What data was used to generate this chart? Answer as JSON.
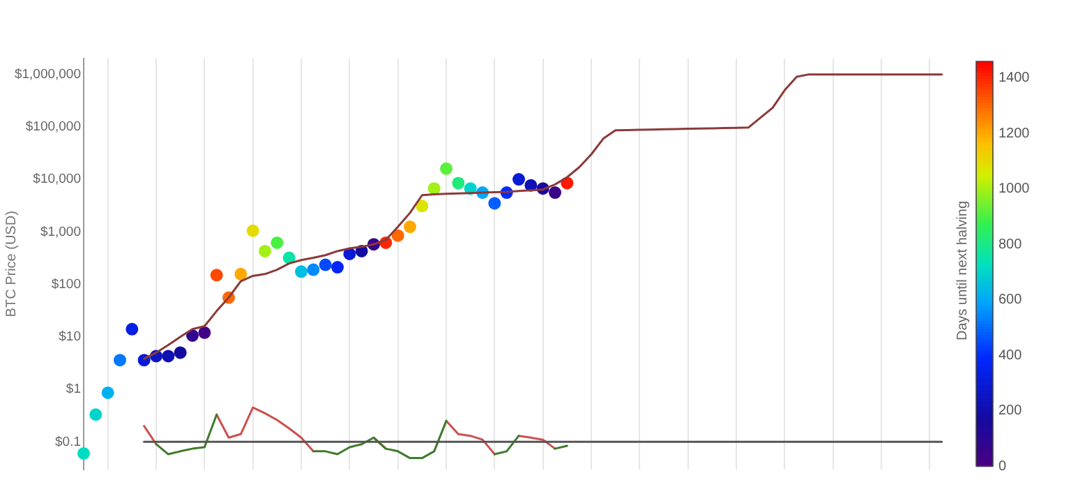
{
  "chart_data": {
    "type": "scatter",
    "ylabel": "BTC Price (USD)",
    "clabel": "Days until next halving",
    "log": true,
    "grid": "x",
    "legend": false,
    "tick_labels": "y",
    "ylim": [
      0.03,
      2000000
    ],
    "yticks": [
      {
        "value": 0.1,
        "label": "$0.1"
      },
      {
        "value": 1,
        "label": "$1"
      },
      {
        "value": 10,
        "label": "$10"
      },
      {
        "value": 100,
        "label": "$100"
      },
      {
        "value": 1000,
        "label": "$1,000"
      },
      {
        "value": 10000,
        "label": "$10,000"
      },
      {
        "value": 100000,
        "label": "$100,000"
      },
      {
        "value": 1000000,
        "label": "$1,000,000"
      }
    ],
    "clim": [
      0,
      1460
    ],
    "cticks": [
      0,
      200,
      400,
      600,
      800,
      1000,
      1200,
      1400
    ],
    "categories": [
      null,
      null,
      null,
      null,
      null,
      null,
      null,
      null,
      null,
      null,
      null,
      null,
      null,
      null,
      null,
      null,
      null,
      null,
      null,
      null,
      null,
      null,
      null,
      null,
      null,
      null,
      null,
      null,
      null,
      null,
      null,
      null,
      null,
      null,
      null,
      null,
      null,
      null,
      null,
      null,
      null,
      null,
      null,
      null,
      null,
      null,
      null,
      null,
      null,
      null,
      null,
      null,
      null,
      null,
      null,
      null,
      null,
      null,
      null,
      null,
      null,
      null,
      null,
      null,
      null,
      null,
      null,
      null,
      null,
      null,
      null,
      null,
      null
    ],
    "series": [
      {
        "type": "line",
        "color": "#555555",
        "values": [
          null,
          null,
          null,
          null,
          null,
          0.1,
          0.1,
          0.1,
          0.1,
          0.1,
          0.1,
          0.1,
          0.1,
          0.1,
          0.1,
          0.1,
          0.1,
          0.1,
          0.1,
          0.1,
          0.1,
          0.1,
          0.1,
          0.1,
          0.1,
          0.1,
          0.1,
          0.1,
          0.1,
          0.1,
          0.1,
          0.1,
          0.1,
          0.1,
          0.1,
          0.1,
          0.1,
          0.1,
          0.1,
          0.1,
          0.1,
          0.1,
          0.1,
          0.1,
          0.1,
          0.1,
          0.1,
          0.1,
          0.1,
          0.1,
          0.1,
          0.1,
          0.1,
          0.1,
          0.1,
          0.1,
          0.1,
          0.1,
          0.1,
          0.1,
          0.1,
          0.1,
          0.1,
          0.1,
          0.1,
          0.1,
          0.1,
          0.1,
          0.1,
          0.1,
          0.1,
          0.1,
          null
        ]
      },
      {
        "type": "line",
        "color": "#3f7a2a",
        "values": [
          null,
          null,
          null,
          null,
          null,
          null,
          0.09,
          0.058,
          0.066,
          0.074,
          0.079,
          0.33,
          null,
          null,
          null,
          null,
          null,
          null,
          null,
          0.066,
          0.066,
          0.058,
          0.079,
          0.09,
          0.12,
          0.074,
          0.066,
          0.049,
          0.049,
          0.066,
          0.25,
          null,
          null,
          null,
          0.058,
          0.066,
          0.13,
          null,
          null,
          0.074,
          0.084,
          null,
          null,
          null,
          null,
          null,
          null,
          null,
          null,
          null,
          null,
          null,
          null,
          null,
          null,
          null,
          null,
          null,
          null,
          null,
          null,
          null,
          null,
          null,
          null,
          null,
          null,
          null,
          null,
          null,
          null,
          null,
          null
        ]
      },
      {
        "type": "line",
        "color": "#c9514e",
        "values": [
          null,
          null,
          null,
          null,
          null,
          0.2,
          0.09,
          null,
          null,
          null,
          null,
          0.33,
          0.12,
          0.14,
          0.45,
          0.35,
          0.26,
          0.18,
          0.12,
          0.066,
          null,
          null,
          null,
          null,
          0.12,
          0.074,
          null,
          null,
          null,
          null,
          0.25,
          0.14,
          0.13,
          0.11,
          0.058,
          null,
          0.13,
          0.12,
          0.11,
          0.074,
          null,
          null,
          null,
          null,
          null,
          null,
          null,
          null,
          null,
          null,
          null,
          null,
          null,
          null,
          null,
          null,
          null,
          null,
          null,
          null,
          null,
          null,
          null,
          null,
          null,
          null,
          null,
          null,
          null,
          null,
          null,
          null,
          null
        ]
      },
      {
        "type": "line",
        "color": "#8b3a3a",
        "values": [
          null,
          null,
          null,
          null,
          null,
          3.8,
          5,
          7,
          10,
          14,
          16,
          31,
          56,
          115,
          145,
          157,
          190,
          250,
          290,
          320,
          360,
          430,
          485,
          520,
          580,
          700,
          1250,
          2300,
          5000,
          5200,
          5300,
          5400,
          5500,
          5600,
          5700,
          5800,
          6000,
          6200,
          6400,
          8000,
          11000,
          17000,
          30000,
          60000,
          86000,
          87000,
          88000,
          89000,
          90000,
          91000,
          92000,
          93000,
          94000,
          95000,
          96000,
          97000,
          150000,
          230000,
          500000,
          900000,
          1000000,
          1000000,
          1000000,
          1000000,
          1000000,
          1000000,
          1000000,
          1000000,
          1000000,
          1000000,
          1000000,
          1000000,
          null
        ]
      },
      {
        "type": "scatter",
        "marker": "circle",
        "values": [
          0.06,
          0.33,
          0.86,
          3.6,
          14,
          3.6,
          4.3,
          4.3,
          5,
          10.6,
          12,
          150,
          56,
          157,
          1050,
          430,
          620,
          320,
          175,
          190,
          236,
          212,
          380,
          430,
          580,
          620,
          850,
          1250,
          3100,
          6700,
          16000,
          8500,
          6700,
          5600,
          3500,
          5600,
          10000,
          7700,
          6700,
          5600,
          8500,
          null,
          null,
          null,
          null,
          null,
          null,
          null,
          null,
          null,
          null,
          null,
          null,
          null,
          null,
          null,
          null,
          null,
          null,
          null,
          null,
          null,
          null,
          null,
          null,
          null,
          null,
          null,
          null,
          null,
          null,
          null,
          null
        ],
        "colors": [
          "#00dcc3",
          "#00d3cc",
          "#00b0ef",
          "#0078ff",
          "#061fe4",
          "#091bd7",
          "#0d14c0",
          "#1010b3",
          "#140aa2",
          "#320590",
          "#420287",
          "#ff4800",
          "#ff6900",
          "#ffa900",
          "#e4db00",
          "#a4f017",
          "#48f040",
          "#0ae4a7",
          "#00bde2",
          "#008aff",
          "#004bff",
          "#0126f8",
          "#091bd7",
          "#130ba3",
          "#38038c",
          "#ff2700",
          "#ff6900",
          "#ffa900",
          "#dde400",
          "#a4f017",
          "#5af03c",
          "#1fea7a",
          "#00d3cc",
          "#00a7f8",
          "#005eff",
          "#002afe",
          "#091bd7",
          "#1012b8",
          "#1c099c",
          "#3c038a",
          "#ff1a00",
          null,
          null,
          null,
          null,
          null,
          null,
          null,
          null,
          null,
          null,
          null,
          null,
          null,
          null,
          null,
          null,
          null,
          null,
          null,
          null,
          null,
          null,
          null,
          null,
          null,
          null,
          null,
          null,
          null,
          null,
          null,
          null
        ],
        "cvalues": [
          720,
          700,
          620,
          520,
          330,
          300,
          250,
          220,
          180,
          80,
          30,
          1350,
          1300,
          1200,
          1100,
          1000,
          900,
          760,
          650,
          550,
          450,
          380,
          300,
          200,
          60,
          1400,
          1300,
          1200,
          1080,
          1000,
          920,
          820,
          700,
          600,
          480,
          400,
          300,
          230,
          150,
          50,
          1420,
          null,
          null,
          null,
          null,
          null,
          null,
          null,
          null,
          null,
          null,
          null,
          null,
          null,
          null,
          null,
          null,
          null,
          null,
          null,
          null,
          null,
          null,
          null,
          null,
          null,
          null,
          null,
          null,
          null,
          null,
          null,
          null
        ]
      }
    ]
  }
}
